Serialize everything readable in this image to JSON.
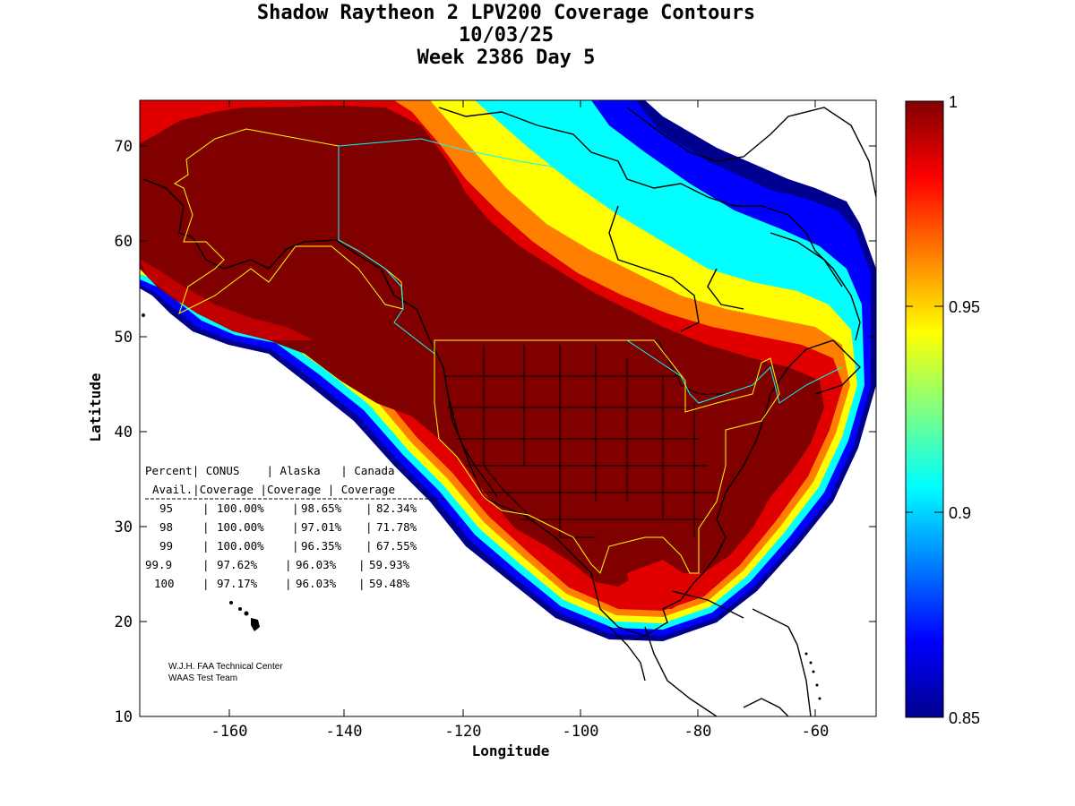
{
  "title": {
    "line1": "Shadow Raytheon 2 LPV200 Coverage Contours",
    "line2": "10/03/25",
    "line3": "Week 2386 Day 5"
  },
  "axes": {
    "xlabel": "Longitude",
    "ylabel": "Latitude",
    "xlim": [
      -175,
      -50
    ],
    "ylim": [
      10,
      75
    ],
    "xticks": [
      -160,
      -140,
      -120,
      -100,
      -80,
      -60
    ],
    "yticks": [
      10,
      20,
      30,
      40,
      50,
      60,
      70
    ]
  },
  "colorbar": {
    "range": [
      0.85,
      1.0
    ],
    "ticks": [
      "1",
      "0.95",
      "0.9",
      "0.85"
    ],
    "tick_values": [
      1.0,
      0.95,
      0.9,
      0.85
    ],
    "colormap": "jet"
  },
  "availability_table": {
    "header1": [
      "Percent",
      "CONUS",
      "Alaska",
      "Canada"
    ],
    "header2": [
      "Avail.",
      "Coverage",
      "Coverage",
      "Coverage"
    ],
    "rows": [
      [
        "95",
        "100.00%",
        "98.65%",
        "82.34%"
      ],
      [
        "98",
        "100.00%",
        "97.01%",
        "71.78%"
      ],
      [
        "99",
        "100.00%",
        "96.35%",
        "67.55%"
      ],
      [
        "99.9",
        "97.62%",
        "96.03%",
        "59.93%"
      ],
      [
        "100",
        "97.17%",
        "96.03%",
        "59.48%"
      ]
    ]
  },
  "credits": {
    "line1": "W.J.H. FAA Technical Center",
    "line2": "WAAS Test Team"
  },
  "colors": {
    "dark_red": "#800000",
    "red": "#e00000",
    "orange": "#ff8000",
    "yellow": "#ffff00",
    "cyan": "#00ffff",
    "blue": "#0000ff",
    "navy": "#00008f",
    "border_yellow": "#ffff00",
    "border_cyan": "#00ffff"
  }
}
